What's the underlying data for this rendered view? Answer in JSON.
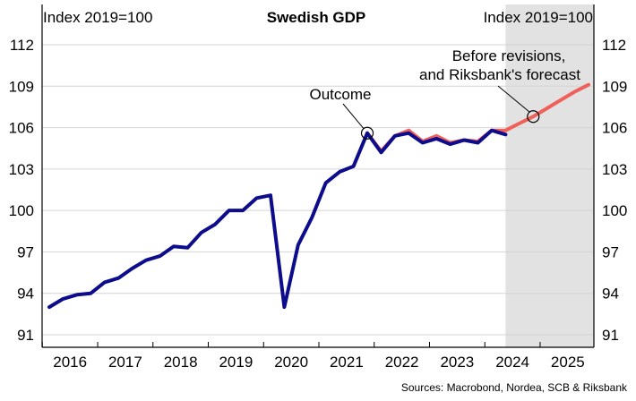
{
  "chart_data": {
    "type": "line",
    "title": "Swedish GDP",
    "ylabel_left": "Index 2019=100",
    "ylabel_right": "Index 2019=100",
    "ylim": [
      90,
      115
    ],
    "yticks": [
      91,
      94,
      97,
      100,
      103,
      106,
      109,
      112
    ],
    "xlim": [
      2016.0,
      2026.0
    ],
    "xtick_labels": [
      "2016",
      "2017",
      "2018",
      "2019",
      "2020",
      "2021",
      "2022",
      "2023",
      "2024",
      "2025"
    ],
    "forecast_shading": {
      "from": 2024.25,
      "to": 2026.0,
      "color": "#e2e2e2"
    },
    "series": [
      {
        "key": "forecast",
        "color": "#f0605a",
        "x": [
          2021.75,
          2022.0,
          2022.25,
          2022.5,
          2022.75,
          2023.0,
          2023.25,
          2023.5,
          2023.75,
          2024.0,
          2024.25,
          2024.5,
          2024.75,
          2025.0,
          2025.25,
          2025.5,
          2025.75
        ],
        "values": [
          105.6,
          104.3,
          105.4,
          105.8,
          105.0,
          105.4,
          104.9,
          105.1,
          105.0,
          105.8,
          105.8,
          106.3,
          106.8,
          107.4,
          108.0,
          108.6,
          109.1
        ]
      },
      {
        "key": "outcome",
        "color": "#0c0c8c",
        "x": [
          2016.0,
          2016.25,
          2016.5,
          2016.75,
          2017.0,
          2017.25,
          2017.5,
          2017.75,
          2018.0,
          2018.25,
          2018.5,
          2018.75,
          2019.0,
          2019.25,
          2019.5,
          2019.75,
          2020.0,
          2020.25,
          2020.5,
          2020.75,
          2021.0,
          2021.25,
          2021.5,
          2021.75,
          2022.0,
          2022.25,
          2022.5,
          2022.75,
          2023.0,
          2023.25,
          2023.5,
          2023.75,
          2024.0,
          2024.25
        ],
        "values": [
          93.0,
          93.6,
          93.9,
          94.0,
          94.8,
          95.1,
          95.8,
          96.4,
          96.7,
          97.4,
          97.3,
          98.4,
          99.0,
          100.0,
          100.0,
          100.9,
          101.1,
          93.0,
          97.5,
          99.5,
          102.0,
          102.8,
          103.2,
          105.6,
          104.2,
          105.4,
          105.6,
          104.9,
          105.2,
          104.8,
          105.1,
          104.9,
          105.8,
          105.5
        ]
      }
    ],
    "annotations": [
      {
        "key": "outcome",
        "text": [
          "Outcome"
        ],
        "x": 2021.75,
        "y": 105.6
      },
      {
        "key": "forecast",
        "text": [
          "Before revisions,",
          "and Riksbank's forecast"
        ],
        "x": 2024.75,
        "y": 106.8
      }
    ],
    "source": "Sources: Macrobond, Nordea, SCB & Riksbank"
  }
}
